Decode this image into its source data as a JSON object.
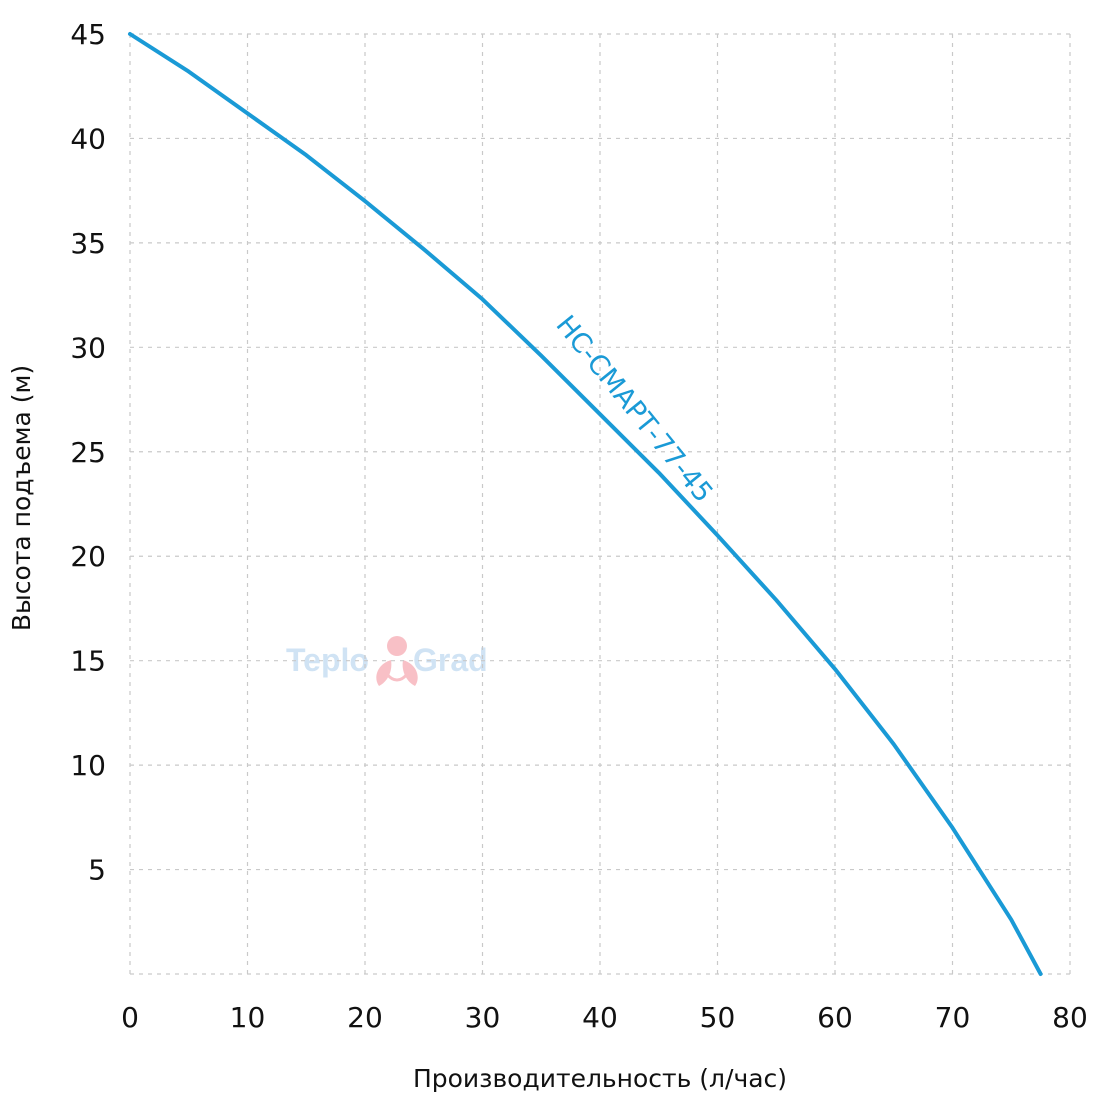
{
  "chart_data": {
    "type": "line",
    "title": "",
    "xlabel": "Производительность (л/час)",
    "ylabel": "Высота подъема (м)",
    "xlim": [
      0,
      80
    ],
    "ylim": [
      0,
      45
    ],
    "x_ticks": [
      0,
      10,
      20,
      30,
      40,
      50,
      60,
      70,
      80
    ],
    "y_ticks": [
      5,
      10,
      15,
      20,
      25,
      30,
      35,
      40,
      45
    ],
    "grid": true,
    "series": [
      {
        "name": "НС-СМАРТ-77-45",
        "color": "#1a9ad6",
        "x": [
          0,
          5,
          10,
          15,
          20,
          25,
          30,
          35,
          40,
          45,
          50,
          55,
          60,
          65,
          70,
          75,
          77.5
        ],
        "y": [
          45,
          43.2,
          41.2,
          39.2,
          37,
          34.7,
          32.3,
          29.6,
          26.8,
          24,
          21,
          17.9,
          14.6,
          11,
          7,
          2.6,
          0
        ]
      }
    ],
    "watermark": {
      "left": "Teplo",
      "right": "Grad",
      "color": "#c8dff3",
      "accent": "#f7b6bd"
    }
  }
}
